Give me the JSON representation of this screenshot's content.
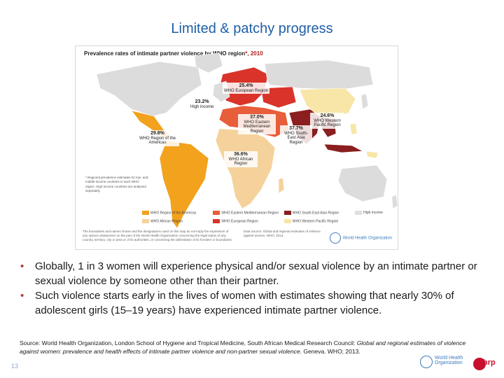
{
  "slide": {
    "title": "Limited & patchy progress",
    "page_number": "13"
  },
  "map": {
    "title_prefix": "Prevalence rates of intimate partner violence by WHO region",
    "title_suffix": "*, 2010",
    "labels": {
      "europe": {
        "value": "25.4%",
        "name": "WHO European Region"
      },
      "high_income": {
        "value": "23.2%",
        "name": "High income"
      },
      "e_med": {
        "value": "37.0%",
        "name": "WHO Eastern Mediterranean Region"
      },
      "w_pacific": {
        "value": "24.6%",
        "name": "WHO Western Pacific Region"
      },
      "se_asia": {
        "value": "37.7%",
        "name": "WHO South-East Asia Region"
      },
      "americas": {
        "value": "29.8%",
        "name": "WHO Region of the Americas"
      },
      "africa": {
        "value": "36.6%",
        "name": "WHO African Region"
      }
    },
    "footnote": "* Regional prevalence estimates for low- and middle-income countries in each WHO region. High-income countries are analysed separately.",
    "legend": [
      {
        "label": "WHO Region of the Americas",
        "color": "#f2a21d"
      },
      {
        "label": "WHO Eastern Mediterranean Region",
        "color": "#e85d3a"
      },
      {
        "label": "WHO South-East Asia Region",
        "color": "#8b1e1e"
      },
      {
        "label": "High income",
        "color": "#e0e0e0"
      },
      {
        "label": "WHO African Region",
        "color": "#f5d29b"
      },
      {
        "label": "WHO European Region",
        "color": "#d9332a"
      },
      {
        "label": "WHO Western Pacific Region",
        "color": "#f7e6a8"
      }
    ],
    "fine_left": "The boundaries and names shown and the designations used on this map do not imply the expression of any opinion whatsoever on the part of the World Health Organization concerning the legal status of any country, territory, city or area or of its authorities, or concerning the delimitation of its frontiers or boundaries.",
    "fine_right": "Data Source: Global and regional estimates of violence against women. WHO, 2013.",
    "who_logo": "World Health Organization"
  },
  "bullets": [
    "Globally, 1 in 3 women will experience physical and/or sexual violence by an intimate partner or sexual violence by someone other than their partner.",
    "Such violence starts early in the lives of women with estimates showing that nearly 30% of adolescent girls (15–19 years) have experienced intimate partner violence."
  ],
  "source": {
    "prefix": "Source: World Health Organization, London School of Hygiene and Tropical Medicine, South African Medical Research Council: ",
    "italic": "Global and regional estimates of violence against women: prevalence and health effects of intimate partner violence and non-partner sexual violence",
    "suffix": ". Geneva. WHO; 2013."
  },
  "footer": {
    "who_line1": "World Health",
    "who_line2": "Organization",
    "hrp": "hrp"
  },
  "colors": {
    "title": "#1f5ea8",
    "bullet": "#b33a3a",
    "americas": "#f2a21d",
    "africa": "#f5d29b",
    "europe": "#d9332a",
    "e_med": "#e85d3a",
    "se_asia": "#8b1e1e",
    "w_pacific": "#f7e6a8",
    "high_income": "#e0e0e0"
  }
}
